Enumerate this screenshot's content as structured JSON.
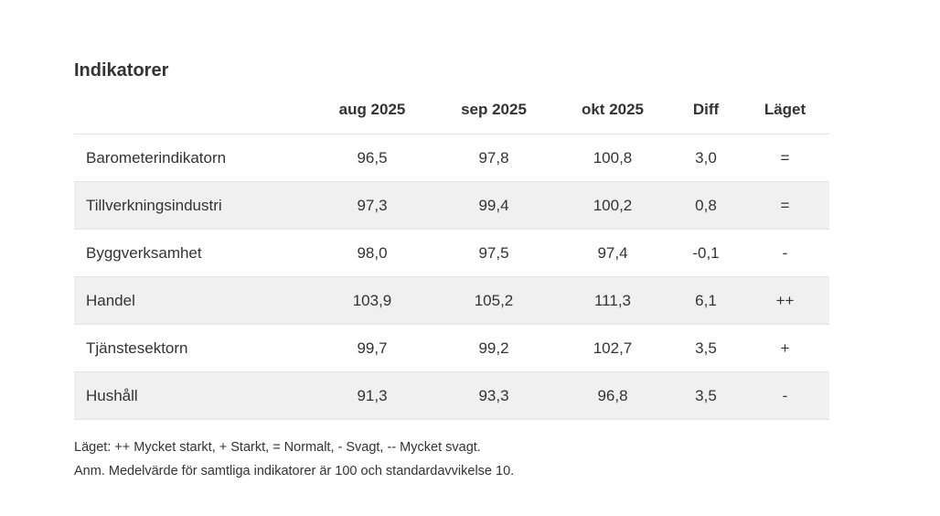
{
  "title": "Indikatorer",
  "table": {
    "headers": [
      "aug 2025",
      "sep 2025",
      "okt 2025",
      "Diff",
      "Läget"
    ],
    "rows": [
      [
        "Barometerindikatorn",
        "96,5",
        "97,8",
        "100,8",
        "3,0",
        "="
      ],
      [
        "Tillverkningsindustri",
        "97,3",
        "99,4",
        "100,2",
        "0,8",
        "="
      ],
      [
        "Byggverksamhet",
        "98,0",
        "97,5",
        "97,4",
        "-0,1",
        "-"
      ],
      [
        "Handel",
        "103,9",
        "105,2",
        "111,3",
        "6,1",
        "++"
      ],
      [
        "Tjänstesektorn",
        "99,7",
        "99,2",
        "102,7",
        "3,5",
        "+"
      ],
      [
        "Hushåll",
        "91,3",
        "93,3",
        "96,8",
        "3,5",
        "-"
      ]
    ]
  },
  "notes": [
    "Läget: ++ Mycket starkt, + Starkt, = Normalt, - Svagt, -- Mycket svagt.",
    "Anm. Medelvärde för samtliga indikatorer är 100 och standardavvikelse 10."
  ]
}
